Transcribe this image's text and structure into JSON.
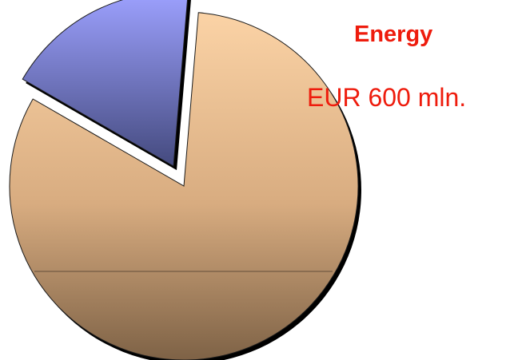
{
  "chart_data": {
    "type": "pie",
    "title": "",
    "slices": [
      {
        "name": "",
        "value": 82,
        "color": "#c9a07c",
        "exploded": false
      },
      {
        "name": "Energy",
        "label": "EUR 600 mln.",
        "value": 18,
        "color": "#7c7fd0",
        "exploded": true
      }
    ],
    "annotation": {
      "title": "Energy",
      "value": "EUR 600 mln.",
      "color": "#ee1c0d"
    },
    "legend": "none",
    "grid": false
  }
}
